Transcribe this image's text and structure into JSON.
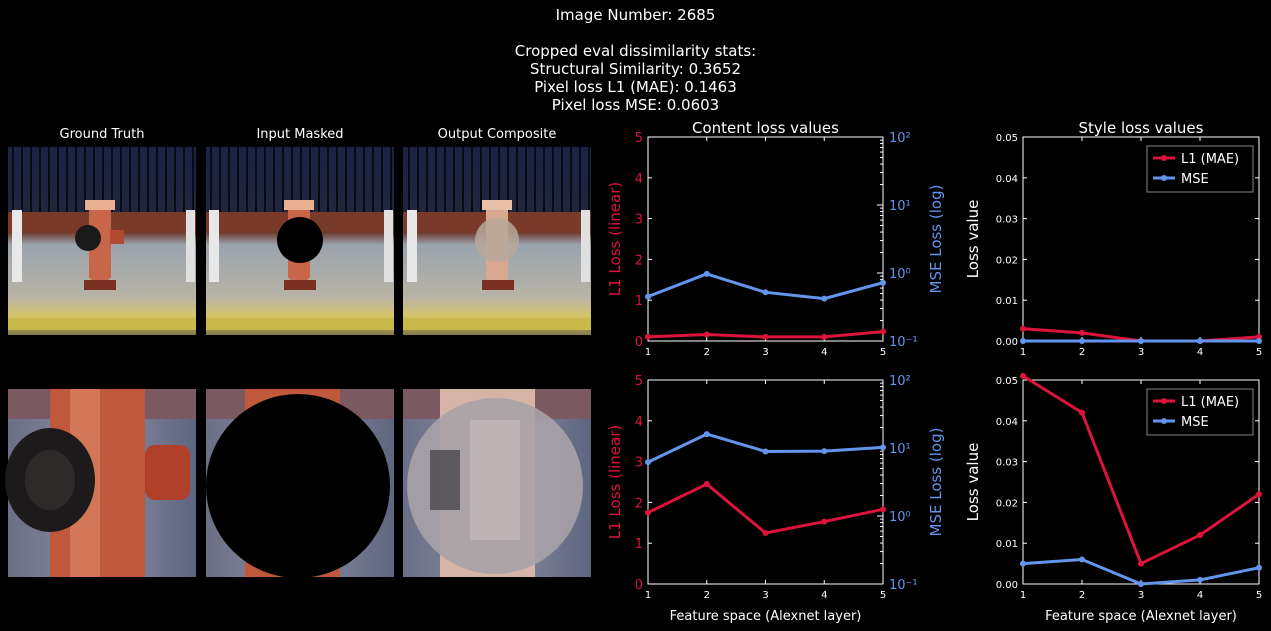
{
  "header": {
    "lines": [
      "Image Number: 2685",
      "",
      "Cropped eval dissimilarity stats:",
      "Structural Similarity: 0.3652",
      "Pixel loss L1 (MAE): 0.1463",
      "Pixel loss MSE: 0.0603"
    ]
  },
  "images": {
    "titles": [
      "Ground Truth",
      "Input Masked",
      "Output Composite"
    ]
  },
  "colors": {
    "l1": "#dc143c",
    "mse": "#6495ed",
    "bg": "#000000",
    "fg": "#ffffff"
  },
  "chart_data": [
    {
      "type": "line",
      "title": "Content loss values",
      "xlabel": "",
      "ylabel": "L1 Loss (linear)",
      "ylabel_right": "MSE Loss (log)",
      "x": [
        1,
        2,
        3,
        4,
        5
      ],
      "xlim": [
        1,
        5
      ],
      "ylim": [
        0,
        5
      ],
      "ylim_right": [
        0.1,
        100
      ],
      "yscale_right": "log",
      "yticks": [
        "0",
        "1",
        "2",
        "3",
        "4",
        "5"
      ],
      "yticks_right": [
        "10⁻¹",
        "10⁰",
        "10¹",
        "10²"
      ],
      "xticks": [
        "1",
        "2",
        "3",
        "4",
        "5"
      ],
      "series": [
        {
          "axis": "left",
          "values": [
            0.1,
            0.16,
            0.1,
            0.1,
            0.23
          ]
        },
        {
          "axis": "right",
          "values": [
            0.45,
            0.97,
            0.52,
            0.42,
            0.72
          ]
        }
      ]
    },
    {
      "type": "line",
      "title": "Style loss values",
      "xlabel": "",
      "ylabel": "Loss value",
      "x": [
        1,
        2,
        3,
        4,
        5
      ],
      "xlim": [
        1,
        5
      ],
      "ylim": [
        0,
        0.05
      ],
      "yticks": [
        "0.00",
        "0.01",
        "0.02",
        "0.03",
        "0.04",
        "0.05"
      ],
      "xticks": [
        "1",
        "2",
        "3",
        "4",
        "5"
      ],
      "legend": "top-right",
      "series": [
        {
          "name": "L1 (MAE)",
          "values": [
            0.003,
            0.002,
            0.0,
            0.0,
            0.001
          ]
        },
        {
          "name": "MSE",
          "values": [
            0.0,
            0.0,
            0.0,
            0.0,
            0.0
          ]
        }
      ]
    },
    {
      "type": "line",
      "title": "",
      "xlabel": "Feature space (Alexnet layer)",
      "ylabel": "L1 Loss (linear)",
      "ylabel_right": "MSE Loss (log)",
      "x": [
        1,
        2,
        3,
        4,
        5
      ],
      "xlim": [
        1,
        5
      ],
      "ylim": [
        0,
        5
      ],
      "ylim_right": [
        0.1,
        100
      ],
      "yscale_right": "log",
      "yticks": [
        "0",
        "1",
        "2",
        "3",
        "4",
        "5"
      ],
      "yticks_right": [
        "10⁻¹",
        "10⁰",
        "10¹",
        "10²"
      ],
      "xticks": [
        "1",
        "2",
        "3",
        "4",
        "5"
      ],
      "series": [
        {
          "axis": "left",
          "values": [
            1.75,
            2.45,
            1.25,
            1.53,
            1.83
          ]
        },
        {
          "axis": "right",
          "values": [
            6.2,
            16.0,
            8.9,
            9.0,
            10.2
          ]
        }
      ]
    },
    {
      "type": "line",
      "title": "",
      "xlabel": "Feature space (Alexnet layer)",
      "ylabel": "Loss value",
      "x": [
        1,
        2,
        3,
        4,
        5
      ],
      "xlim": [
        1,
        5
      ],
      "ylim": [
        0,
        0.05
      ],
      "yticks": [
        "0.00",
        "0.01",
        "0.02",
        "0.03",
        "0.04",
        "0.05"
      ],
      "xticks": [
        "1",
        "2",
        "3",
        "4",
        "5"
      ],
      "legend": "top-right",
      "series": [
        {
          "name": "L1 (MAE)",
          "values": [
            0.051,
            0.042,
            0.005,
            0.012,
            0.022
          ]
        },
        {
          "name": "MSE",
          "values": [
            0.005,
            0.006,
            0.0,
            0.001,
            0.004
          ]
        }
      ]
    }
  ]
}
